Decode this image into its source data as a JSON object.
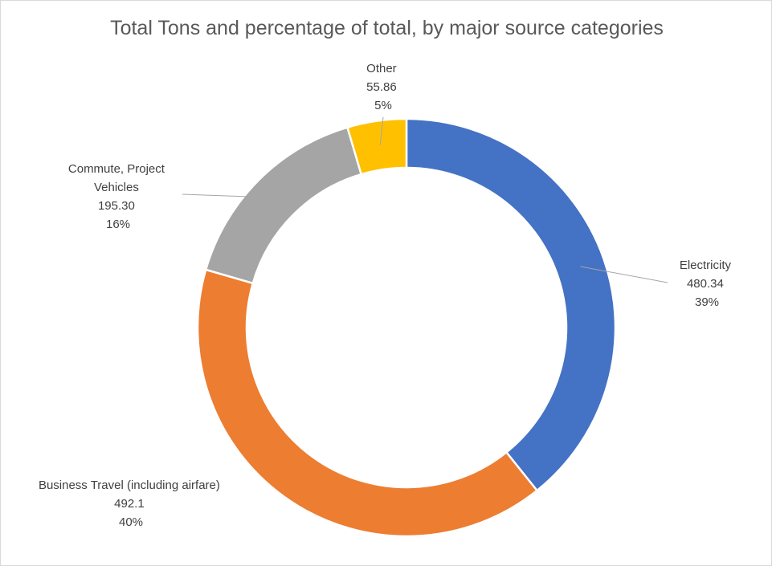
{
  "chart_data": {
    "type": "pie",
    "variant": "doughnut",
    "title": "Total Tons and percentage of total, by major source categories",
    "series": [
      {
        "name": "Tons",
        "slices": [
          {
            "label": "Electricity",
            "value_text": "480.34",
            "value": 480.34,
            "percent": "39%",
            "color": "#4472C4"
          },
          {
            "label": "Business Travel (including airfare)",
            "value_text": "492.1",
            "value": 492.1,
            "percent": "40%",
            "color": "#ED7D31"
          },
          {
            "label_lines": [
              "Commute, Project",
              "Vehicles"
            ],
            "label": "Commute, Project Vehicles",
            "value_text": "195.30",
            "value": 195.3,
            "percent": "16%",
            "color": "#A5A5A5"
          },
          {
            "label": "Other",
            "value_text": "55.86",
            "value": 55.86,
            "percent": "5%",
            "color": "#FFC000"
          }
        ]
      }
    ],
    "legend": "none",
    "leader_line_color": "#A6A6A6"
  }
}
